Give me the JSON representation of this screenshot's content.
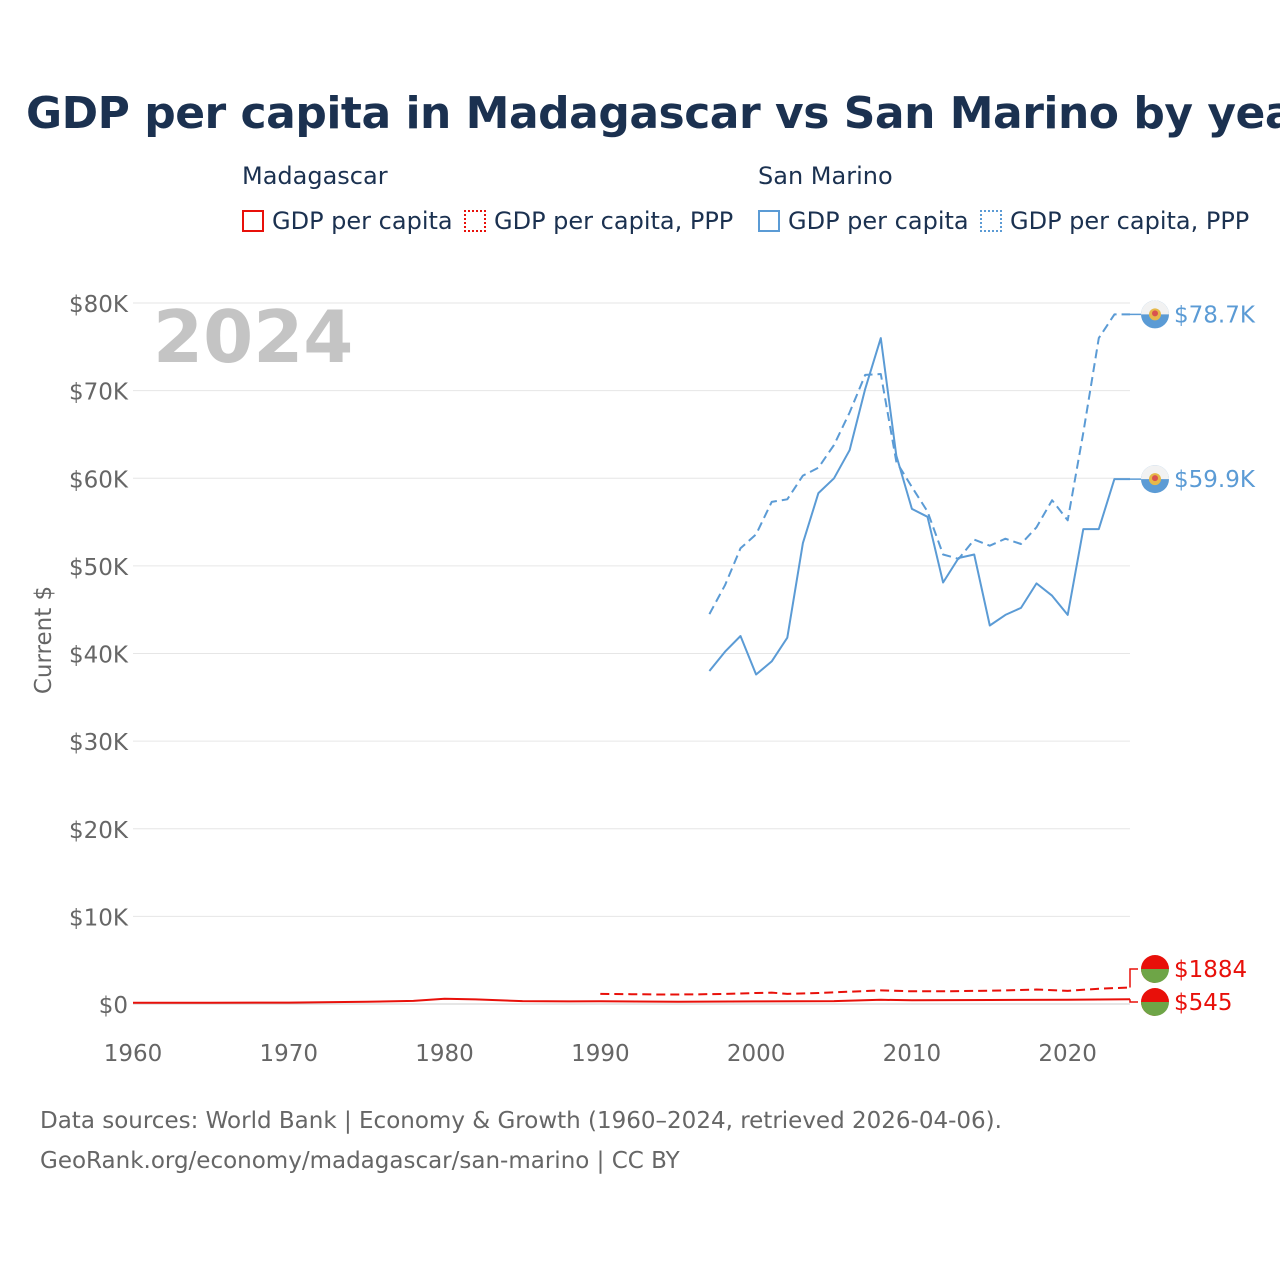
{
  "chart_data": {
    "type": "line",
    "title": "GDP per capita in Madagascar vs San Marino by year",
    "ylabel": "Current $",
    "xlabel": "",
    "xlim": [
      1960,
      2024
    ],
    "ylim": [
      0,
      80000
    ],
    "x_ticks": [
      1960,
      1970,
      1980,
      1990,
      2000,
      2010,
      2020
    ],
    "x_tick_labels": [
      "1960",
      "1970",
      "1980",
      "1990",
      "2000",
      "2010",
      "2020"
    ],
    "y_ticks": [
      0,
      10000,
      20000,
      30000,
      40000,
      50000,
      60000,
      70000,
      80000
    ],
    "y_tick_labels": [
      "$0",
      "$10K",
      "$20K",
      "$30K",
      "$40K",
      "$50K",
      "$60K",
      "$70K",
      "$80K"
    ],
    "year_label": "2024",
    "grid": true,
    "legend": {
      "placement": "top",
      "groups": [
        {
          "name": "Madagascar",
          "entries": [
            "GDP per capita",
            "GDP per capita, PPP"
          ]
        },
        {
          "name": "San Marino",
          "entries": [
            "GDP per capita",
            "GDP per capita, PPP"
          ]
        }
      ]
    },
    "series": [
      {
        "name": "San Marino GDP per capita, PPP",
        "country": "San Marino",
        "style": "dashed",
        "color": "#5b9bd5",
        "end_label": "$78.7K",
        "x": [
          1997,
          1998,
          1999,
          2000,
          2001,
          2002,
          2003,
          2004,
          2005,
          2006,
          2007,
          2008,
          2009,
          2010,
          2011,
          2012,
          2013,
          2014,
          2015,
          2016,
          2017,
          2018,
          2019,
          2020,
          2021,
          2022,
          2023,
          2024
        ],
        "values": [
          44500,
          47800,
          52000,
          53600,
          57300,
          57600,
          60300,
          61200,
          63800,
          67500,
          71800,
          71900,
          61900,
          59000,
          56200,
          51300,
          50800,
          53000,
          52300,
          53100,
          52500,
          54400,
          57500,
          55200,
          65200,
          76000,
          78700,
          78700
        ]
      },
      {
        "name": "San Marino GDP per capita",
        "country": "San Marino",
        "style": "solid",
        "color": "#5b9bd5",
        "end_label": "$59.9K",
        "x": [
          1997,
          1998,
          1999,
          2000,
          2001,
          2002,
          2003,
          2004,
          2005,
          2006,
          2007,
          2008,
          2009,
          2010,
          2011,
          2012,
          2013,
          2014,
          2015,
          2016,
          2017,
          2018,
          2019,
          2020,
          2021,
          2022,
          2023,
          2024
        ],
        "values": [
          38000,
          40200,
          42000,
          37600,
          39100,
          41800,
          52600,
          58300,
          60000,
          63200,
          70200,
          76000,
          62600,
          56500,
          55600,
          48100,
          50900,
          51300,
          43200,
          44400,
          45200,
          48000,
          46600,
          44400,
          54200,
          54200,
          59900,
          59900
        ]
      },
      {
        "name": "Madagascar GDP per capita, PPP",
        "country": "Madagascar",
        "style": "dashed",
        "color": "#e8100a",
        "end_label": "$1884",
        "x": [
          1990,
          1992,
          1994,
          1996,
          1998,
          2000,
          2001,
          2002,
          2004,
          2006,
          2008,
          2010,
          2012,
          2014,
          2016,
          2018,
          2020,
          2022,
          2024
        ],
        "values": [
          1150,
          1120,
          1080,
          1100,
          1150,
          1250,
          1300,
          1150,
          1250,
          1400,
          1550,
          1450,
          1450,
          1500,
          1550,
          1650,
          1500,
          1750,
          1884
        ]
      },
      {
        "name": "Madagascar GDP per capita",
        "country": "Madagascar",
        "style": "solid",
        "color": "#e8100a",
        "end_label": "$545",
        "x": [
          1960,
          1965,
          1970,
          1975,
          1978,
          1980,
          1982,
          1985,
          1988,
          1990,
          1995,
          2000,
          2005,
          2008,
          2010,
          2015,
          2020,
          2024
        ],
        "values": [
          140,
          150,
          160,
          250,
          350,
          600,
          520,
          330,
          300,
          310,
          250,
          300,
          330,
          480,
          420,
          460,
          480,
          545
        ]
      }
    ]
  },
  "footer": {
    "line1": "Data sources: World Bank | Economy & Growth (1960–2024, retrieved 2026-04-06).",
    "line2": "GeoRank.org/economy/madagascar/san-marino | CC BY"
  },
  "colors": {
    "title": "#1b3150",
    "madagascar": "#e8100a",
    "san_marino": "#5b9bd5",
    "axis_text": "#666666",
    "grid": "#e6e6e6",
    "year_label": "#c4c4c4"
  }
}
